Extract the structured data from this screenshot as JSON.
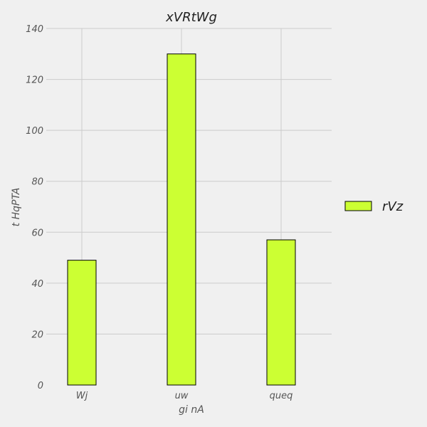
{
  "chart_data": {
    "type": "bar",
    "title": "xVRtWg",
    "xlabel": "gi nA",
    "ylabel": "t HqPTA",
    "categories": [
      "Wj",
      "uw",
      "queq"
    ],
    "series": [
      {
        "name": "rVz",
        "values": [
          49,
          130,
          57
        ],
        "color": "#ccff33"
      }
    ],
    "ylim": [
      0,
      140
    ],
    "yticks": [
      0,
      20,
      40,
      60,
      80,
      100,
      120,
      140
    ],
    "grid": true,
    "legend_position": "right",
    "colors": {
      "background": "#f0f0f0",
      "bar_fill": "#ccff33",
      "bar_edge": "#000000",
      "grid": "#cbcbcb"
    }
  }
}
